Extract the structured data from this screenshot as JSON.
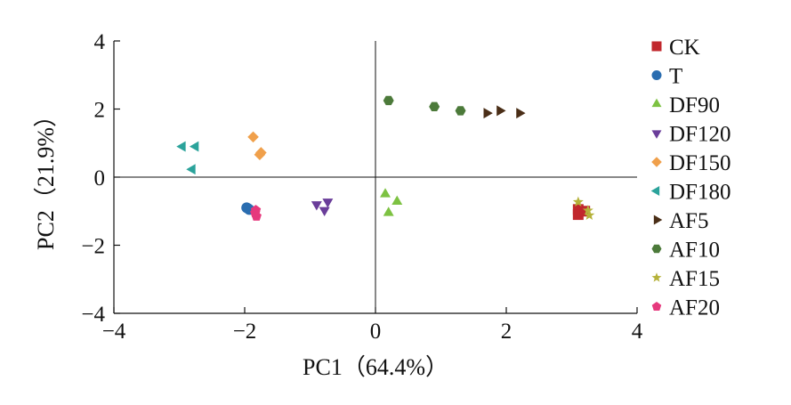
{
  "chart_data": {
    "type": "scatter",
    "xlabel": "PC1（64.4%）",
    "ylabel": "PC2（21.9%）",
    "xlim": [
      -4,
      4
    ],
    "ylim": [
      -4,
      4
    ],
    "xticks": [
      "−4",
      "−2",
      "0",
      "2",
      "4"
    ],
    "yticks": [
      "−4",
      "−2",
      "0",
      "2",
      "4"
    ],
    "grid": false,
    "zero_lines": true,
    "legend_position": "right",
    "series": [
      {
        "name": "CK",
        "color": "#c1272d",
        "marker": "square",
        "points": [
          [
            3.1,
            -0.95
          ],
          [
            3.1,
            -1.1
          ],
          [
            3.2,
            -1.0
          ]
        ]
      },
      {
        "name": "T",
        "color": "#2a6db0",
        "marker": "circle",
        "points": [
          [
            -1.97,
            -0.9
          ],
          [
            -1.93,
            -0.95
          ],
          [
            -1.95,
            -0.92
          ]
        ]
      },
      {
        "name": "DF90",
        "color": "#7dc242",
        "marker": "triangle-up",
        "points": [
          [
            0.15,
            -0.5
          ],
          [
            0.33,
            -0.72
          ],
          [
            0.2,
            -1.05
          ]
        ]
      },
      {
        "name": "DF120",
        "color": "#6a3d9a",
        "marker": "triangle-down",
        "points": [
          [
            -0.9,
            -0.8
          ],
          [
            -0.73,
            -0.72
          ],
          [
            -0.78,
            -0.97
          ]
        ]
      },
      {
        "name": "DF150",
        "color": "#f0a04b",
        "marker": "diamond",
        "points": [
          [
            -1.87,
            1.18
          ],
          [
            -1.75,
            0.72
          ],
          [
            -1.77,
            0.66
          ]
        ]
      },
      {
        "name": "DF180",
        "color": "#2ba39b",
        "marker": "triangle-left",
        "points": [
          [
            -2.95,
            0.9
          ],
          [
            -2.75,
            0.9
          ],
          [
            -2.8,
            0.23
          ]
        ]
      },
      {
        "name": "AF5",
        "color": "#4a2e17",
        "marker": "triangle-right",
        "points": [
          [
            1.7,
            1.88
          ],
          [
            1.9,
            1.95
          ],
          [
            2.2,
            1.88
          ]
        ]
      },
      {
        "name": "AF10",
        "color": "#4c7a3a",
        "marker": "hexagon",
        "points": [
          [
            0.2,
            2.25
          ],
          [
            0.9,
            2.07
          ],
          [
            1.3,
            1.95
          ]
        ]
      },
      {
        "name": "AF15",
        "color": "#b5b23a",
        "marker": "star",
        "points": [
          [
            3.1,
            -0.73
          ],
          [
            3.25,
            -0.98
          ],
          [
            3.27,
            -1.12
          ]
        ]
      },
      {
        "name": "AF20",
        "color": "#e6397d",
        "marker": "pentagon",
        "points": [
          [
            -1.83,
            -0.97
          ],
          [
            -1.82,
            -1.15
          ],
          [
            -1.84,
            -1.05
          ]
        ]
      }
    ]
  }
}
